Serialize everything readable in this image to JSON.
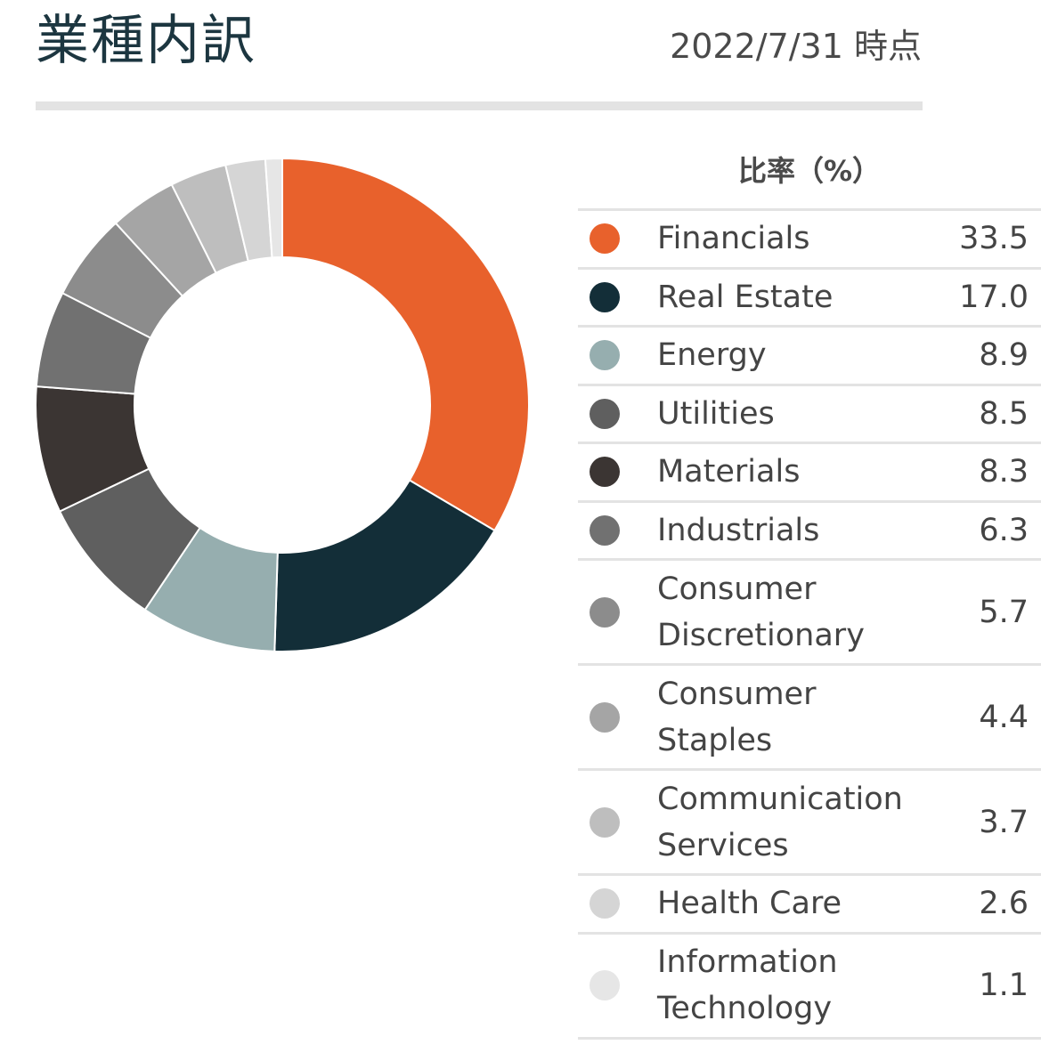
{
  "header": {
    "title": "業種内訳",
    "as_of": "2022/7/31 時点"
  },
  "table": {
    "column_header": "比率（%）"
  },
  "chart_data": {
    "type": "pie",
    "donut": true,
    "title": "業種内訳",
    "unit": "%",
    "legend_position": "right",
    "categories": [
      "Financials",
      "Real Estate",
      "Energy",
      "Utilities",
      "Materials",
      "Industrials",
      "Consumer\nDiscretionary",
      "Consumer\nStaples",
      "Communication\nServices",
      "Health Care",
      "Information\nTechnology"
    ],
    "values": [
      33.5,
      17.0,
      8.9,
      8.5,
      8.3,
      6.3,
      5.7,
      4.4,
      3.7,
      2.6,
      1.1
    ],
    "value_labels": [
      "33.5",
      "17.0",
      "8.9",
      "8.5",
      "8.3",
      "6.3",
      "5.7",
      "4.4",
      "3.7",
      "2.6",
      "1.1"
    ],
    "colors": [
      "#e8612c",
      "#132e38",
      "#96aeaf",
      "#5f5f5f",
      "#3b3533",
      "#717171",
      "#8c8c8c",
      "#a5a5a5",
      "#bebebe",
      "#d5d5d5",
      "#e6e6e6"
    ]
  }
}
